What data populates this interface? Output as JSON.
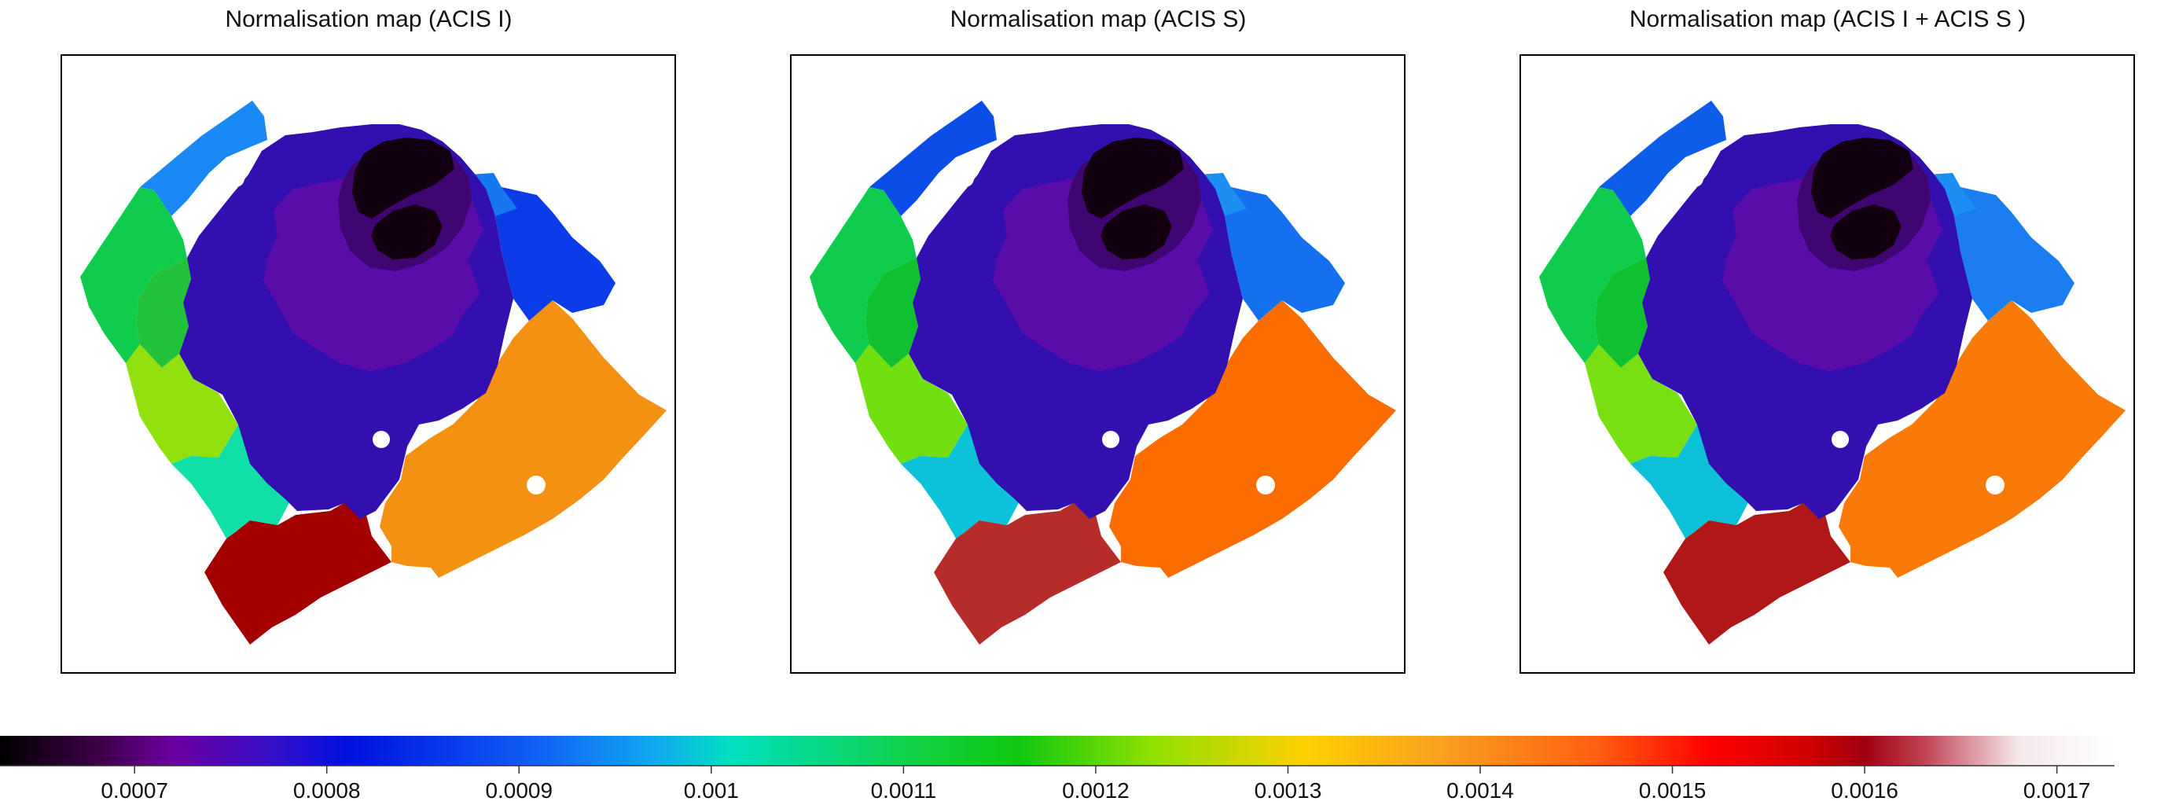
{
  "chart_data": {
    "type": "heatmap",
    "panels": [
      {
        "title": "Normalisation map (ACIS I)",
        "region_colors": {
          "north": "#1a88f5",
          "west": "#10cc4d",
          "west_inner": "#22c33a",
          "south_west": "#92e00e",
          "south": "#10e0a8",
          "bottom": "#a30000",
          "east": "#f49012",
          "north_east": "#0c3be8",
          "north_east_small": "#1578f0",
          "ring_outer": "#3210b0",
          "ring_mid": "#5a0ca8",
          "ring_inner": "#3f0570",
          "core": "#120010"
        }
      },
      {
        "title": "Normalisation map (ACIS S)",
        "region_colors": {
          "north": "#0c4de8",
          "west": "#10cc4d",
          "west_inner": "#10c030",
          "south_west": "#72df10",
          "south": "#0cc2d8",
          "bottom": "#b62c2a",
          "east": "#fb6d00",
          "north_east": "#1570f0",
          "north_east_small": "#1d8ef2",
          "ring_outer": "#3210b0",
          "ring_mid": "#5a0ca8",
          "ring_inner": "#3f0570",
          "core": "#120010"
        }
      },
      {
        "title": "Normalisation map (ACIS I + ACIS S )",
        "region_colors": {
          "north": "#0c5de8",
          "west": "#10cc4d",
          "west_inner": "#10c030",
          "south_west": "#78df10",
          "south": "#0cc0d8",
          "bottom": "#b01818",
          "east": "#f97a08",
          "north_east": "#1a7ef0",
          "north_east_small": "#1d8ef2",
          "ring_outer": "#3210b0",
          "ring_mid": "#5a0ca8",
          "ring_inner": "#3f0570",
          "core": "#120010"
        }
      }
    ],
    "colorbar": {
      "range": [
        0.00063,
        0.00173
      ],
      "ticks": [
        0.0007,
        0.0008,
        0.0009,
        0.001,
        0.0011,
        0.0012,
        0.0013,
        0.0014,
        0.0015,
        0.0016,
        0.0017
      ],
      "tick_labels": [
        "0.0007",
        "0.0008",
        "0.0009",
        "0.001",
        "0.0011",
        "0.0012",
        "0.0013",
        "0.0014",
        "0.0015",
        "0.0016",
        "0.0017"
      ],
      "palette": [
        {
          "value": 0.00063,
          "color": "#000000"
        },
        {
          "value": 0.00068,
          "color": "#3c0046"
        },
        {
          "value": 0.00072,
          "color": "#6c00a0"
        },
        {
          "value": 0.00077,
          "color": "#3a10c8"
        },
        {
          "value": 0.00081,
          "color": "#0010e0"
        },
        {
          "value": 0.00091,
          "color": "#1060f5"
        },
        {
          "value": 0.00097,
          "color": "#10a8f0"
        },
        {
          "value": 0.00101,
          "color": "#00e0c0"
        },
        {
          "value": 0.00111,
          "color": "#10d040"
        },
        {
          "value": 0.00116,
          "color": "#10c810"
        },
        {
          "value": 0.00123,
          "color": "#90e000"
        },
        {
          "value": 0.00131,
          "color": "#ffd000"
        },
        {
          "value": 0.00138,
          "color": "#f8a020"
        },
        {
          "value": 0.00146,
          "color": "#ff6010"
        },
        {
          "value": 0.00152,
          "color": "#ff0000"
        },
        {
          "value": 0.00157,
          "color": "#d00000"
        },
        {
          "value": 0.0016,
          "color": "#a00010"
        },
        {
          "value": 0.00163,
          "color": "#c04050"
        },
        {
          "value": 0.00168,
          "color": "#f5e8ea"
        },
        {
          "value": 0.00173,
          "color": "#ffffff"
        }
      ]
    }
  }
}
